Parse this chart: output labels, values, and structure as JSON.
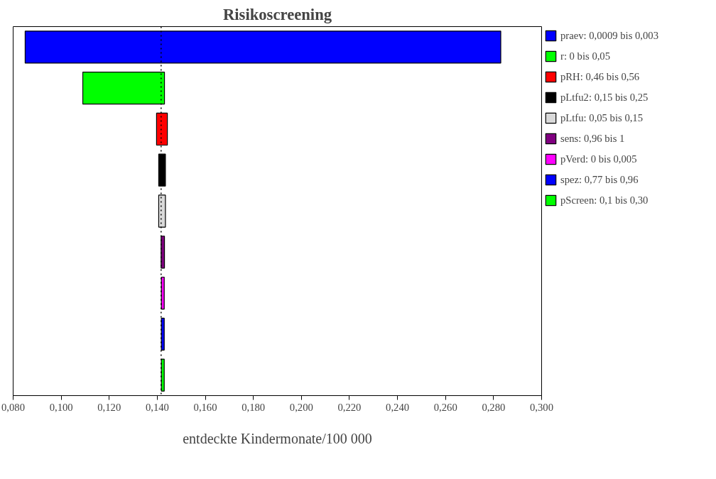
{
  "chart_data": {
    "type": "bar",
    "title": "Risikoscreening",
    "xlabel": "entdeckte Kindermonate/100 000",
    "orientation": "horizontal",
    "categories": [
      null,
      null,
      null,
      null,
      null,
      null,
      null,
      null,
      null
    ],
    "series": [
      {
        "name": "praev: 0,0009 bis 0,003",
        "color": "#0000ff",
        "values": [
          0.198,
          null,
          null,
          null,
          null,
          null,
          null,
          null,
          null
        ],
        "base": [
          0.085,
          null,
          null,
          null,
          null,
          null,
          null,
          null,
          null
        ]
      },
      {
        "name": "r: 0 bis 0,05",
        "color": "#00ff00",
        "values": [
          null,
          0.034,
          null,
          null,
          null,
          null,
          null,
          null,
          null
        ],
        "base": [
          null,
          0.109,
          null,
          null,
          null,
          null,
          null,
          null,
          null
        ]
      },
      {
        "name": "pRH: 0,46 bis 0,56",
        "color": "#ff0000",
        "values": [
          null,
          null,
          0.0045,
          null,
          null,
          null,
          null,
          null,
          null
        ],
        "base": [
          null,
          null,
          0.1397,
          null,
          null,
          null,
          null,
          null,
          null
        ]
      },
      {
        "name": "pLtfu2: 0,15 bis 0,25",
        "color": "#000000",
        "values": [
          null,
          null,
          null,
          0.0028,
          null,
          null,
          null,
          null,
          null
        ],
        "base": [
          null,
          null,
          null,
          0.1406,
          null,
          null,
          null,
          null,
          null
        ]
      },
      {
        "name": "pLtfu: 0,05 bis 0,15",
        "color": "#d9d9d9",
        "values": [
          null,
          null,
          null,
          null,
          0.0028,
          null,
          null,
          null,
          null
        ],
        "base": [
          null,
          null,
          null,
          null,
          0.1406,
          null,
          null,
          null,
          null
        ]
      },
      {
        "name": "sens: 0,96 bis 1",
        "color": "#800080",
        "values": [
          null,
          null,
          null,
          null,
          null,
          0.0014,
          null,
          null,
          null
        ],
        "base": [
          null,
          null,
          null,
          null,
          null,
          0.1416,
          null,
          null,
          null
        ]
      },
      {
        "name": "pVerd: 0 bis 0,005",
        "color": "#ff00ff",
        "values": [
          null,
          null,
          null,
          null,
          null,
          null,
          0.0012,
          null,
          null
        ],
        "base": [
          null,
          null,
          null,
          null,
          null,
          null,
          0.1417,
          null,
          null
        ]
      },
      {
        "name": "spez: 0,77 bis 0,96",
        "color": "#0000ff",
        "values": [
          null,
          null,
          null,
          null,
          null,
          null,
          null,
          0.0012,
          null
        ],
        "base": [
          null,
          null,
          null,
          null,
          null,
          null,
          null,
          0.1417,
          null
        ]
      },
      {
        "name": "pScreen: 0,1 bis 0,30",
        "color": "#00ff00",
        "values": [
          null,
          null,
          null,
          null,
          null,
          null,
          null,
          null,
          0.0012
        ],
        "base": [
          null,
          null,
          null,
          null,
          null,
          null,
          null,
          null,
          0.1417
        ]
      }
    ],
    "xlim": [
      0.08,
      0.3
    ],
    "xticks": [
      {
        "value": 0.08,
        "label": "0,080"
      },
      {
        "value": 0.1,
        "label": "0,100"
      },
      {
        "value": 0.12,
        "label": "0,120"
      },
      {
        "value": 0.14,
        "label": "0,140"
      },
      {
        "value": 0.16,
        "label": "0,160"
      },
      {
        "value": 0.18,
        "label": "0,180"
      },
      {
        "value": 0.2,
        "label": "0,200"
      },
      {
        "value": 0.22,
        "label": "0,220"
      },
      {
        "value": 0.24,
        "label": "0,240"
      },
      {
        "value": 0.26,
        "label": "0,260"
      },
      {
        "value": 0.28,
        "label": "0,280"
      },
      {
        "value": 0.3,
        "label": "0,300"
      }
    ],
    "ref_lines": [
      {
        "axis": "x",
        "value": 0.1416,
        "label": null,
        "color": "#000000",
        "line_style": "dotted"
      }
    ],
    "tick_labels": "x",
    "grid": false,
    "legend": "top right"
  }
}
